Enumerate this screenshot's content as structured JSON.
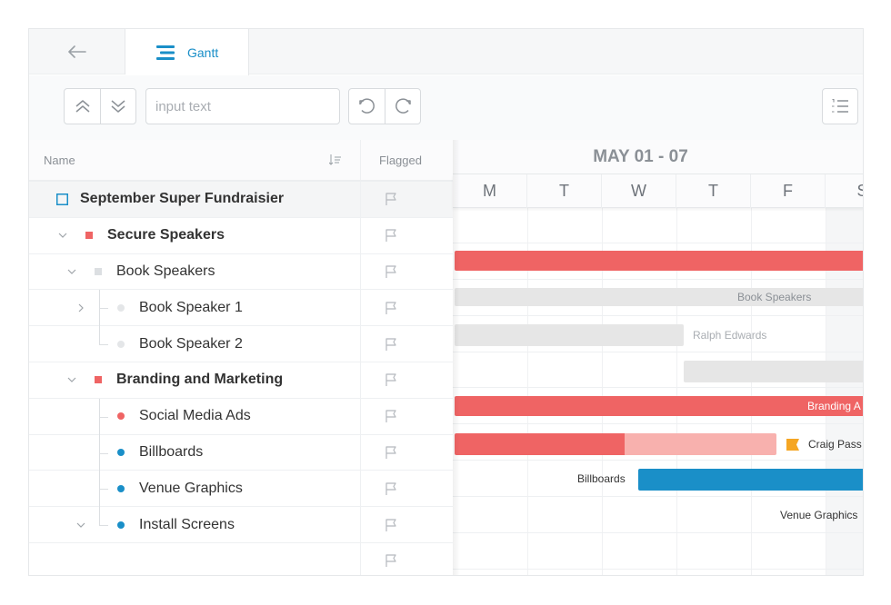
{
  "tabbar": {
    "tab_label": "Gantt"
  },
  "toolbar": {
    "search_placeholder": "input text"
  },
  "grid": {
    "col_name": "Name",
    "col_flagged": "Flagged",
    "rows": [
      {
        "label": "September Super Fundraisier",
        "bold": true
      },
      {
        "label": "Secure Speakers",
        "bold": true
      },
      {
        "label": "Book Speakers",
        "bold": false
      },
      {
        "label": "Book Speaker 1",
        "bold": false
      },
      {
        "label": "Book Speaker 2",
        "bold": false
      },
      {
        "label": "Branding and Marketing",
        "bold": true
      },
      {
        "label": "Social Media Ads",
        "bold": false
      },
      {
        "label": "Billboards",
        "bold": false
      },
      {
        "label": "Venue Graphics",
        "bold": false
      },
      {
        "label": "Install Screens",
        "bold": false
      },
      {
        "label": "",
        "bold": false
      }
    ]
  },
  "gantt": {
    "week_label": "MAY 01 - 07",
    "days": [
      "M",
      "T",
      "W",
      "T",
      "F",
      "S"
    ],
    "bar_labels": {
      "book_speakers": "Book Speakers",
      "ralph": "Ralph Edwards",
      "branding": "Branding A",
      "craig": "Craig Pass",
      "billboards": "Billboards",
      "venue_graphics": "Venue Graphics"
    }
  },
  "colors": {
    "accent_blue": "#1a8fc8",
    "red": "#ef6464",
    "red_light": "#f8b1ae",
    "gray_bar": "#e6e6e6",
    "flag_orange": "#f5a623"
  }
}
